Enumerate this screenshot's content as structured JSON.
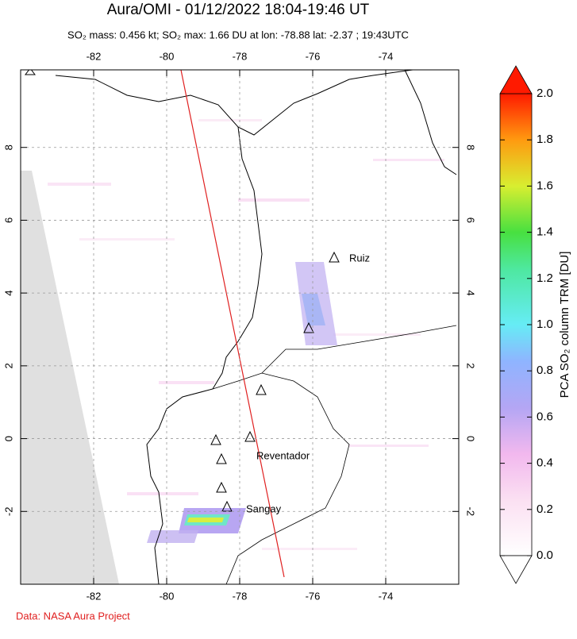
{
  "map": {
    "title": "Aura/OMI - 01/12/2022 18:04-19:46 UT",
    "subtitle": "SO₂ mass: 0.456 kt; SO₂ max: 1.66 DU at lon: -78.88 lat: -2.37 ; 19:43UTC",
    "xlim": [
      -84,
      -72
    ],
    "ylim": [
      -4,
      10
    ],
    "xticks": [
      -82,
      -80,
      -78,
      -76,
      -74
    ],
    "yticks": [
      -2,
      0,
      2,
      4,
      6,
      8
    ],
    "volcanoes": [
      "Ruiz",
      "Reventador",
      "Sangay"
    ],
    "colorbar": {
      "label": "PCA SO₂ column TRM [DU]",
      "lim": [
        0,
        2
      ],
      "ticks": [
        {
          "value": 0,
          "label": "0.0"
        },
        {
          "value": 0.2,
          "label": "0.2"
        },
        {
          "value": 0.4,
          "label": "0.4"
        },
        {
          "value": 0.6,
          "label": "0.6"
        },
        {
          "value": 0.8,
          "label": "0.8"
        },
        {
          "value": 1,
          "label": "1.0"
        },
        {
          "value": 1.2,
          "label": "1.2"
        },
        {
          "value": 1.4,
          "label": "1.4"
        },
        {
          "value": 1.6,
          "label": "1.6"
        },
        {
          "value": 1.8,
          "label": "1.8"
        },
        {
          "value": 2,
          "label": "2.0"
        }
      ]
    },
    "footer": "Data: NASA Aura Project"
  }
}
